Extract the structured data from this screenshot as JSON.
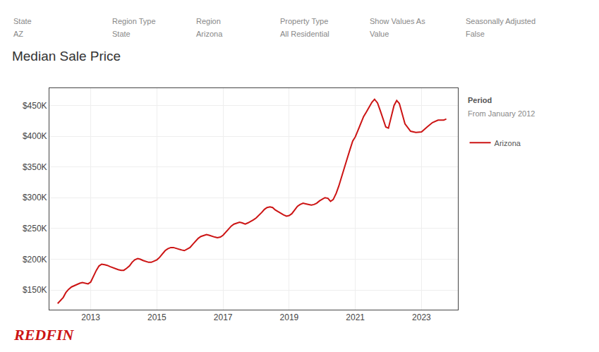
{
  "chart_data": {
    "type": "line",
    "title": "Median Sale Price",
    "annotations": [
      [
        "State",
        "AZ"
      ],
      [
        "Region Type",
        "State"
      ],
      [
        "Region",
        "Arizona"
      ],
      [
        "Property Type",
        "All Residential"
      ],
      [
        "Show Values As",
        "Value"
      ],
      [
        "Seasonally Adjusted",
        "False"
      ],
      [
        "Period",
        "From January 2012"
      ],
      [
        "REDFIN"
      ]
    ],
    "x": [
      2012.0,
      2012.08,
      2012.17,
      2012.25,
      2012.33,
      2012.42,
      2012.5,
      2012.58,
      2012.67,
      2012.75,
      2012.83,
      2012.92,
      2013.0,
      2013.08,
      2013.17,
      2013.25,
      2013.33,
      2013.42,
      2013.5,
      2013.58,
      2013.67,
      2013.75,
      2013.83,
      2013.92,
      2014.0,
      2014.08,
      2014.17,
      2014.25,
      2014.33,
      2014.42,
      2014.5,
      2014.58,
      2014.67,
      2014.75,
      2014.83,
      2014.92,
      2015.0,
      2015.08,
      2015.17,
      2015.25,
      2015.33,
      2015.42,
      2015.5,
      2015.58,
      2015.67,
      2015.75,
      2015.83,
      2015.92,
      2016.0,
      2016.08,
      2016.17,
      2016.25,
      2016.33,
      2016.42,
      2016.5,
      2016.58,
      2016.67,
      2016.75,
      2016.83,
      2016.92,
      2017.0,
      2017.08,
      2017.17,
      2017.25,
      2017.33,
      2017.42,
      2017.5,
      2017.58,
      2017.67,
      2017.75,
      2017.83,
      2017.92,
      2018.0,
      2018.08,
      2018.17,
      2018.25,
      2018.33,
      2018.42,
      2018.5,
      2018.58,
      2018.67,
      2018.75,
      2018.83,
      2018.92,
      2019.0,
      2019.08,
      2019.17,
      2019.25,
      2019.33,
      2019.42,
      2019.5,
      2019.58,
      2019.67,
      2019.75,
      2019.83,
      2019.92,
      2020.0,
      2020.08,
      2020.17,
      2020.25,
      2020.33,
      2020.42,
      2020.5,
      2020.58,
      2020.67,
      2020.75,
      2020.83,
      2020.92,
      2021.0,
      2021.08,
      2021.17,
      2021.25,
      2021.33,
      2021.42,
      2021.5,
      2021.58,
      2021.67,
      2021.75,
      2021.83,
      2021.92,
      2022.0,
      2022.08,
      2022.17,
      2022.25,
      2022.33,
      2022.5,
      2022.67,
      2022.83,
      2023.0,
      2023.17,
      2023.33,
      2023.5,
      2023.67,
      2023.75
    ],
    "series": [
      {
        "name": "Arizona",
        "color": "#cc1414",
        "values": [
          128000,
          133000,
          138000,
          146000,
          151000,
          155000,
          157000,
          159000,
          161000,
          162000,
          161000,
          160000,
          163000,
          172000,
          182000,
          189000,
          192000,
          191000,
          190000,
          188000,
          186000,
          185000,
          183000,
          182000,
          182000,
          185000,
          189000,
          195000,
          199000,
          201000,
          200000,
          198000,
          196000,
          195000,
          195000,
          197000,
          199000,
          203000,
          209000,
          214000,
          217000,
          219000,
          219000,
          218000,
          216000,
          215000,
          214000,
          217000,
          219000,
          224000,
          229000,
          234000,
          237000,
          239000,
          240000,
          239000,
          237000,
          236000,
          235000,
          236000,
          239000,
          244000,
          249000,
          254000,
          257000,
          259000,
          260000,
          259000,
          257000,
          259000,
          261000,
          264000,
          267000,
          271000,
          276000,
          281000,
          284000,
          285000,
          284000,
          280000,
          277000,
          274000,
          272000,
          270000,
          271000,
          274000,
          280000,
          286000,
          289000,
          291000,
          290000,
          289000,
          288000,
          289000,
          291000,
          295000,
          298000,
          300000,
          299000,
          294000,
          297000,
          307000,
          319000,
          334000,
          349000,
          363000,
          377000,
          392000,
          399000,
          409000,
          421000,
          432000,
          439000,
          447000,
          455000,
          460000,
          454000,
          442000,
          428000,
          415000,
          413000,
          430000,
          450000,
          458000,
          453000,
          420000,
          408000,
          406000,
          407000,
          415000,
          422000,
          426000,
          426000,
          428000
        ]
      }
    ],
    "xlim": [
      2011.75,
      2024.1
    ],
    "xticks": [
      2013,
      2015,
      2017,
      2019,
      2021,
      2023
    ],
    "ylim": [
      118000,
      478000
    ],
    "yticks": [
      {
        "value": 150000,
        "label": "$150K"
      },
      {
        "value": 200000,
        "label": "$200K"
      },
      {
        "value": 250000,
        "label": "$250K"
      },
      {
        "value": 300000,
        "label": "$300K"
      },
      {
        "value": 350000,
        "label": "$350K"
      },
      {
        "value": 400000,
        "label": "$400K"
      },
      {
        "value": 450000,
        "label": "$450K"
      }
    ],
    "grid": true,
    "legend": "right"
  }
}
